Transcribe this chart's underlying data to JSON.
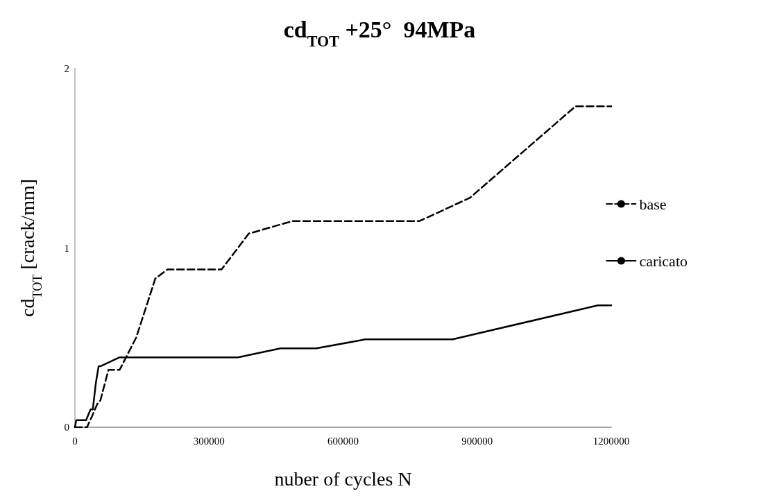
{
  "chart_data": {
    "type": "line",
    "title": "cd$_{TOT}$ +25°  94MPa",
    "xlabel": "nuber of cycles N",
    "ylabel": "cd$_{TOT}$ [crack/mm]",
    "xlim": [
      0,
      1200000
    ],
    "xticks": [
      0,
      300000,
      600000,
      900000,
      1200000
    ],
    "ylim": [
      0,
      2
    ],
    "yticks": [
      0,
      1,
      2
    ],
    "grid": false,
    "legend": "right",
    "marker": "none",
    "series": [
      {
        "name": "base",
        "color": "#000000",
        "line_style": "dashed",
        "x": [
          0,
          27000,
          38000,
          50000,
          57000,
          75000,
          100000,
          137000,
          180000,
          207000,
          328000,
          389000,
          487000,
          771000,
          884000,
          1120000,
          1200000
        ],
        "values": [
          0,
          0,
          0.06,
          0.13,
          0.15,
          0.32,
          0.32,
          0.5,
          0.83,
          0.88,
          0.88,
          1.08,
          1.15,
          1.15,
          1.28,
          1.79,
          1.79
        ]
      },
      {
        "name": "caricato",
        "color": "#000000",
        "line_style": "solid",
        "x": [
          0,
          3000,
          25000,
          35000,
          40000,
          47000,
          53000,
          57000,
          100000,
          365000,
          460000,
          540000,
          650000,
          845000,
          1170000,
          1200000
        ],
        "values": [
          0,
          0.04,
          0.04,
          0.1,
          0.1,
          0.25,
          0.34,
          0.34,
          0.39,
          0.39,
          0.44,
          0.44,
          0.49,
          0.49,
          0.68,
          0.68
        ]
      }
    ]
  }
}
